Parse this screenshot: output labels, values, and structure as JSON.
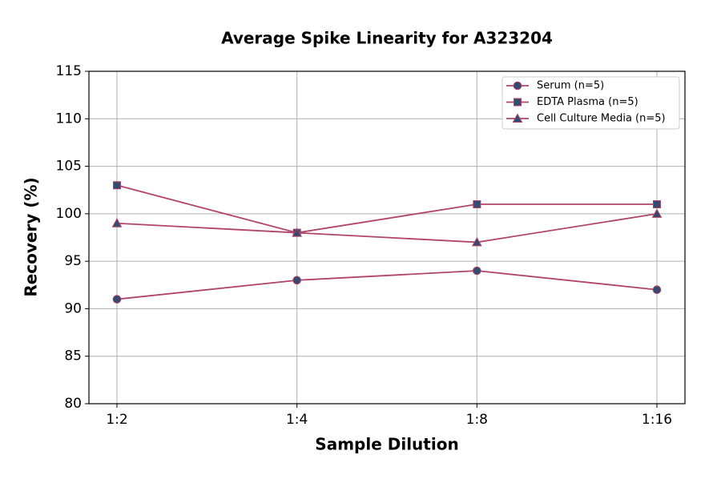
{
  "chart_data": {
    "type": "line",
    "title": "Average Spike Linearity for A323204",
    "x_label": "Sample Dilution",
    "y_label": "Recovery (%)",
    "categories": [
      "1:2",
      "1:4",
      "1:8",
      "1:16"
    ],
    "series": [
      {
        "name": "Serum (n=5)",
        "color": "#b0446a",
        "marker": "circle",
        "marker_color": "#344a6e",
        "values": [
          91,
          93,
          94,
          92
        ]
      },
      {
        "name": "EDTA Plasma (n=5)",
        "color": "#b0446a",
        "marker": "square",
        "marker_color": "#344a6e",
        "values": [
          103,
          98,
          101,
          101
        ]
      },
      {
        "name": "Cell Culture Media (n=5)",
        "color": "#b0446a",
        "marker": "triangle",
        "marker_color": "#344a6e",
        "values": [
          99,
          98,
          97,
          100
        ]
      }
    ],
    "ylim": [
      80,
      115
    ],
    "yticks": [
      80,
      85,
      90,
      95,
      100,
      105,
      110,
      115
    ],
    "grid": true,
    "legend": "upper right"
  }
}
